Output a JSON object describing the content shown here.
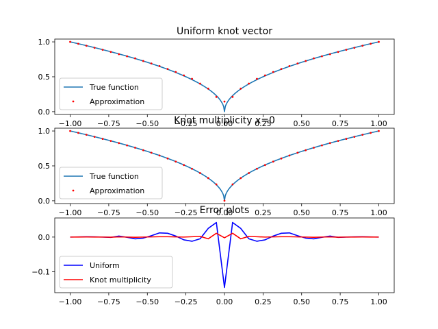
{
  "chart_data": [
    {
      "type": "line",
      "title": "Uniform knot vector",
      "xlim": [
        -1.1,
        1.1
      ],
      "ylim": [
        -0.04,
        1.04
      ],
      "xticks": [
        "−1.00",
        "−0.75",
        "−0.50",
        "−0.25",
        "0.00",
        "0.25",
        "0.50",
        "0.75",
        "1.00"
      ],
      "xtick_values": [
        -1,
        -0.75,
        -0.5,
        -0.25,
        0,
        0.25,
        0.5,
        0.75,
        1
      ],
      "yticks": [
        "0.0",
        "0.5",
        "1.0"
      ],
      "ytick_values": [
        0,
        0.5,
        1
      ],
      "legend": "lower-left",
      "series": [
        {
          "name": "True function",
          "kind": "line",
          "color": "#1f77b4",
          "fn": "sqrt_abs"
        },
        {
          "name": "Approximation",
          "kind": "scatter",
          "color": "#ff0000",
          "x": [
            -1.0,
            -0.9474,
            -0.8947,
            -0.8421,
            -0.7895,
            -0.7368,
            -0.6842,
            -0.6316,
            -0.5789,
            -0.5263,
            -0.4737,
            -0.4211,
            -0.3684,
            -0.3158,
            -0.2632,
            -0.2105,
            -0.1579,
            -0.1053,
            -0.0526,
            0.0,
            0.0526,
            0.1053,
            0.1579,
            0.2105,
            0.2632,
            0.3158,
            0.3684,
            0.4211,
            0.4737,
            0.5263,
            0.5789,
            0.6316,
            0.6842,
            0.7368,
            0.7895,
            0.8421,
            0.8947,
            0.9474,
            1.0
          ],
          "y": [
            1.0,
            0.972,
            0.944,
            0.915,
            0.886,
            0.856,
            0.823,
            0.793,
            0.764,
            0.726,
            0.69,
            0.653,
            0.612,
            0.569,
            0.52,
            0.47,
            0.402,
            0.33,
            0.212,
            0.145,
            0.212,
            0.33,
            0.402,
            0.47,
            0.52,
            0.569,
            0.612,
            0.653,
            0.69,
            0.726,
            0.764,
            0.793,
            0.823,
            0.856,
            0.886,
            0.915,
            0.944,
            0.972,
            1.0
          ]
        }
      ]
    },
    {
      "type": "line",
      "title": "Knot multiplicity x=0",
      "xlim": [
        -1.1,
        1.1
      ],
      "ylim": [
        -0.04,
        1.04
      ],
      "xticks": [
        "−1.00",
        "−0.75",
        "−0.50",
        "−0.25",
        "0.00",
        "0.25",
        "0.50",
        "0.75",
        "1.00"
      ],
      "xtick_values": [
        -1,
        -0.75,
        -0.5,
        -0.25,
        0,
        0.25,
        0.5,
        0.75,
        1
      ],
      "yticks": [
        "0.0",
        "0.5",
        "1.0"
      ],
      "ytick_values": [
        0,
        0.5,
        1
      ],
      "legend": "lower-left",
      "series": [
        {
          "name": "True function",
          "kind": "line",
          "color": "#1f77b4",
          "fn": "sqrt_abs"
        },
        {
          "name": "Approximation",
          "kind": "scatter",
          "color": "#ff0000",
          "x": [
            -1.0,
            -0.9474,
            -0.8947,
            -0.8421,
            -0.7895,
            -0.7368,
            -0.6842,
            -0.6316,
            -0.5789,
            -0.5263,
            -0.4737,
            -0.4211,
            -0.3684,
            -0.3158,
            -0.2632,
            -0.2105,
            -0.1579,
            -0.1053,
            -0.0526,
            0.0,
            0.0526,
            0.1053,
            0.1579,
            0.2105,
            0.2632,
            0.3158,
            0.3684,
            0.4211,
            0.4737,
            0.5263,
            0.5789,
            0.6316,
            0.6842,
            0.7368,
            0.7895,
            0.8421,
            0.8947,
            0.9474,
            1.0
          ],
          "y": [
            0.999,
            0.972,
            0.945,
            0.916,
            0.887,
            0.857,
            0.826,
            0.793,
            0.76,
            0.724,
            0.688,
            0.648,
            0.606,
            0.561,
            0.512,
            0.458,
            0.397,
            0.325,
            0.235,
            0.0,
            0.235,
            0.325,
            0.397,
            0.458,
            0.512,
            0.561,
            0.606,
            0.648,
            0.688,
            0.724,
            0.76,
            0.793,
            0.826,
            0.857,
            0.887,
            0.916,
            0.945,
            0.972,
            0.999
          ]
        }
      ]
    },
    {
      "type": "line",
      "title": "Error plots",
      "xlim": [
        -1.1,
        1.1
      ],
      "ylim": [
        -0.16,
        0.055
      ],
      "xticks": [
        "−1.00",
        "−0.75",
        "−0.50",
        "−0.25",
        "0.00",
        "0.25",
        "0.50",
        "0.75",
        "1.00"
      ],
      "xtick_values": [
        -1,
        -0.75,
        -0.5,
        -0.25,
        0,
        0.25,
        0.5,
        0.75,
        1
      ],
      "yticks": [
        "−0.1",
        "0.0"
      ],
      "ytick_values": [
        -0.1,
        0.0
      ],
      "legend": "lower-left",
      "series": [
        {
          "name": "Uniform",
          "kind": "line",
          "color": "#0000ff",
          "x": [
            -1.0,
            -0.9474,
            -0.8947,
            -0.8421,
            -0.7895,
            -0.7368,
            -0.6842,
            -0.6316,
            -0.5789,
            -0.5263,
            -0.4737,
            -0.4211,
            -0.3684,
            -0.3158,
            -0.2632,
            -0.2105,
            -0.1579,
            -0.1053,
            -0.0526,
            0.0,
            0.0526,
            0.1053,
            0.1579,
            0.2105,
            0.2632,
            0.3158,
            0.3684,
            0.4211,
            0.4737,
            0.5263,
            0.5789,
            0.6316,
            0.6842,
            0.7368,
            0.7895,
            0.8421,
            0.8947,
            0.9474,
            1.0
          ],
          "y": [
            0.0,
            0.0005,
            0.0008,
            0.0006,
            0.0,
            -0.0008,
            0.003,
            -0.0006,
            -0.005,
            -0.003,
            0.004,
            0.012,
            0.011,
            0.003,
            -0.008,
            -0.012,
            -0.005,
            0.025,
            0.042,
            -0.145,
            0.042,
            0.025,
            -0.005,
            -0.012,
            -0.008,
            0.003,
            0.011,
            0.012,
            0.004,
            -0.003,
            -0.005,
            -0.0006,
            0.003,
            -0.0008,
            0.0,
            0.0006,
            0.0008,
            0.0005,
            0.0
          ]
        },
        {
          "name": "Knot multiplicity",
          "kind": "line",
          "color": "#ff0000",
          "x": [
            -1.0,
            -0.9474,
            -0.8947,
            -0.8421,
            -0.7895,
            -0.7368,
            -0.6842,
            -0.6316,
            -0.5789,
            -0.5263,
            -0.4737,
            -0.4211,
            -0.3684,
            -0.3158,
            -0.2632,
            -0.2105,
            -0.1579,
            -0.1053,
            -0.0526,
            0.0,
            0.0526,
            0.1053,
            0.1579,
            0.2105,
            0.2632,
            0.3158,
            0.3684,
            0.4211,
            0.4737,
            0.5263,
            0.5789,
            0.6316,
            0.6842,
            0.7368,
            0.7895,
            0.8421,
            0.8947,
            0.9474,
            1.0
          ],
          "y": [
            0.0,
            0.0002,
            0.0004,
            0.0002,
            0.0,
            -0.0003,
            0.0005,
            0.0,
            -0.0005,
            0.0,
            0.0005,
            0.001,
            0.001,
            0.0005,
            0.0,
            0.001,
            0.002,
            -0.005,
            0.011,
            -0.002,
            0.011,
            -0.005,
            0.002,
            0.001,
            0.0,
            0.0005,
            0.001,
            0.001,
            0.0005,
            0.0,
            -0.0005,
            0.0,
            0.0005,
            -0.0003,
            0.0,
            0.0002,
            0.0004,
            0.0002,
            0.0
          ]
        }
      ]
    }
  ]
}
